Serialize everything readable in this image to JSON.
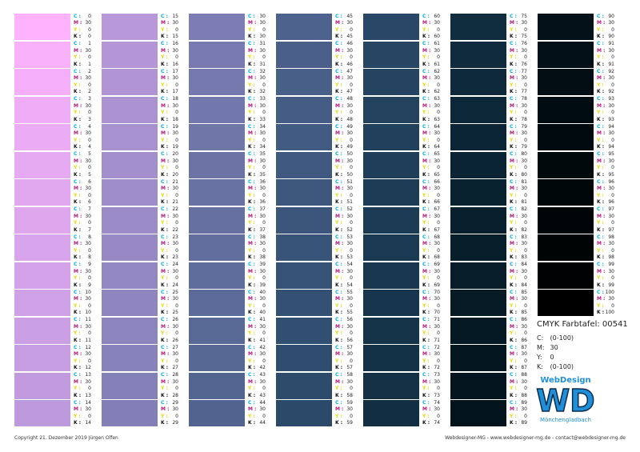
{
  "sheet": {
    "title": "CMYK Farbtafel: 00541",
    "params": [
      {
        "key": "C:",
        "value": "(0-100)"
      },
      {
        "key": "M:",
        "value": "30"
      },
      {
        "key": "Y:",
        "value": "0"
      },
      {
        "key": "K:",
        "value": "(0-100)"
      }
    ],
    "fixed_m": 30,
    "fixed_y": 0,
    "channel_labels": {
      "c": "C :",
      "m": "M :",
      "y": "Y :",
      "k": "K :"
    },
    "columns": 7,
    "rows": 15,
    "last_value": 100
  },
  "logo": {
    "top": "WebDesign",
    "letters": "WD",
    "bottom": "Mönchengladbach",
    "accent_color": "#1f8fd8"
  },
  "footer": {
    "left": "Copyright 21. Dezember 2019 Jürgen Olfen",
    "right": "Webdesigner-MG - www.webdesigner-mg.de - contact@webdesigner-mg.de"
  }
}
